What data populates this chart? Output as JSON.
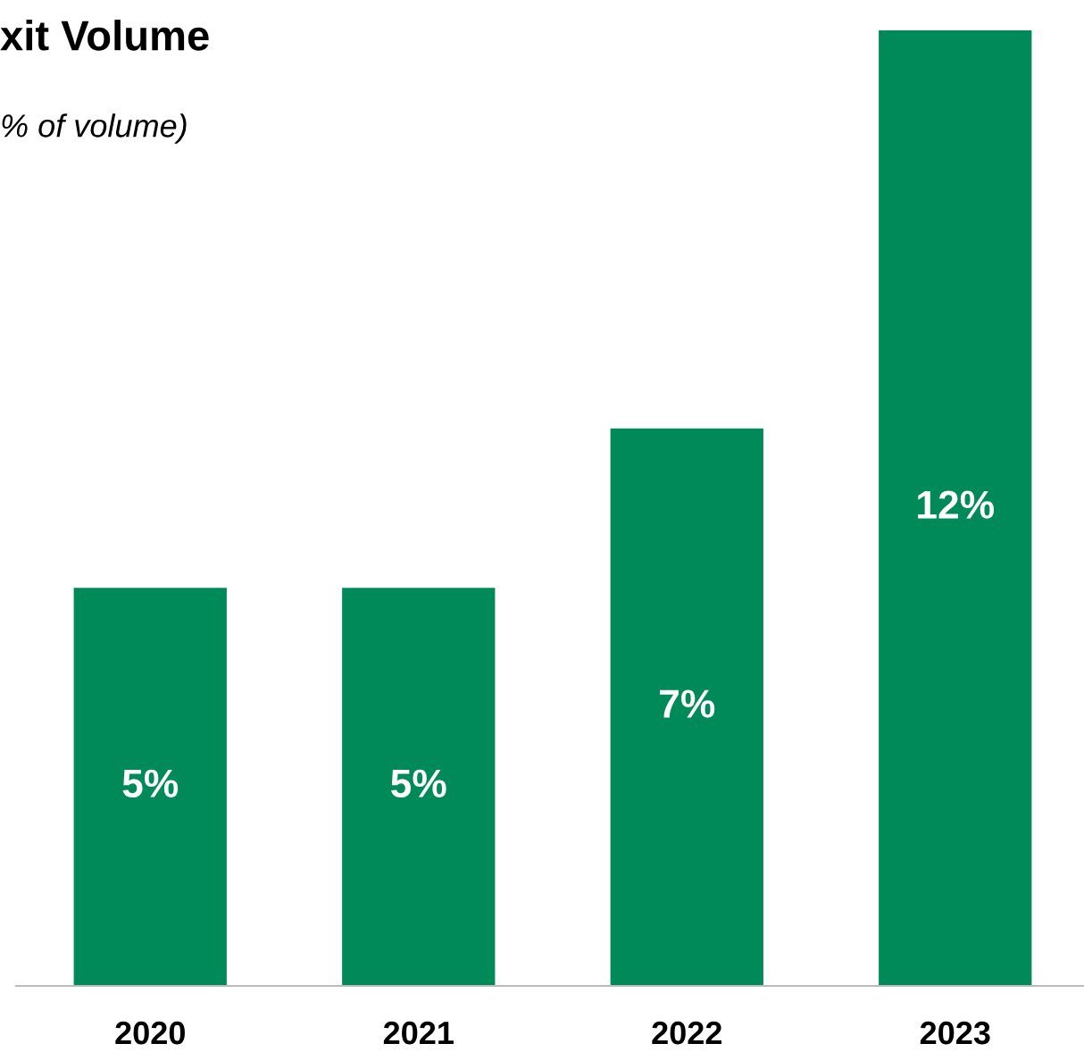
{
  "chart_data": {
    "type": "bar",
    "title": "xit Volume",
    "subtitle": "% of volume)",
    "categories": [
      "2020",
      "2021",
      "2022",
      "2023"
    ],
    "values": [
      5,
      5,
      7,
      12
    ],
    "value_labels": [
      "5%",
      "5%",
      "7%",
      "12%"
    ],
    "color": "#008a5a",
    "ylim": [
      0,
      12
    ],
    "tick_labels": "x",
    "grid": false,
    "legend": false
  }
}
